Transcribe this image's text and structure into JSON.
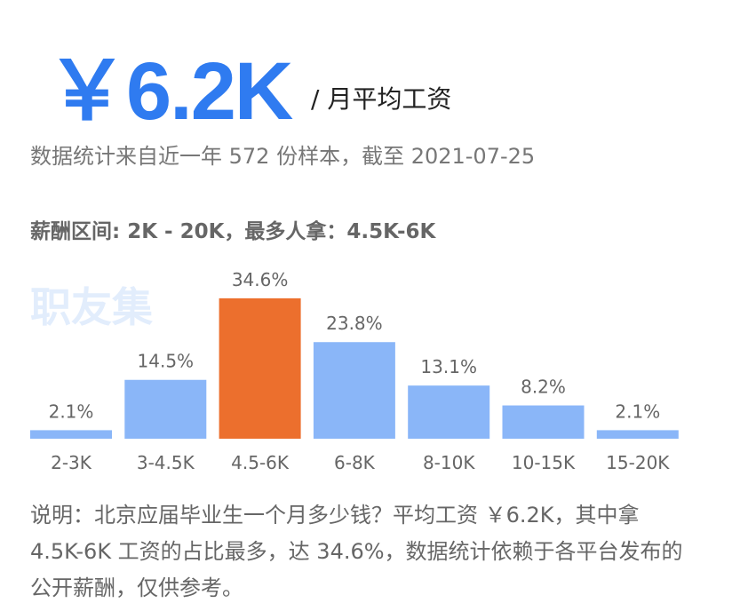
{
  "header": {
    "amount": "￥6.2K",
    "unit": "/ 月平均工资"
  },
  "source": "数据统计来自近一年 572 份样本，截至 2021-07-25",
  "range_label": "薪酬区间: 2K - 20K，最多人拿：4.5K-6K",
  "watermark": "职友集",
  "chart_data": {
    "type": "bar",
    "categories": [
      "2-3K",
      "3-4.5K",
      "4.5-6K",
      "6-8K",
      "8-10K",
      "10-15K",
      "15-20K"
    ],
    "values": [
      2.1,
      14.5,
      34.6,
      23.8,
      13.1,
      8.2,
      2.1
    ],
    "value_labels": [
      "2.1%",
      "14.5%",
      "34.6%",
      "23.8%",
      "13.1%",
      "8.2%",
      "2.1%"
    ],
    "colors": [
      "#8ab6f8",
      "#8ab6f8",
      "#ec6f2d",
      "#8ab6f8",
      "#8ab6f8",
      "#8ab6f8",
      "#8ab6f8"
    ]
  },
  "note": "说明：北京应届毕业生一个月多少钱？平均工资 ￥6.2K，其中拿 4.5K-6K 工资的占比最多，达 34.6%，数据统计依赖于各平台发布的公开薪酬，仅供参考。"
}
